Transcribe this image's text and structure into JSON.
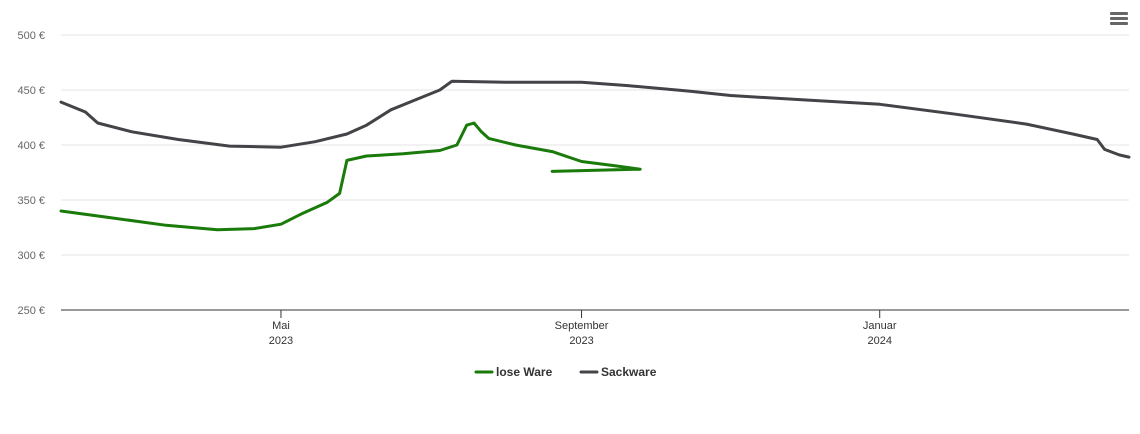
{
  "chart_data": {
    "type": "line",
    "title": "",
    "xlabel": "",
    "ylabel": "",
    "ylim": [
      250,
      500
    ],
    "yticks": [
      250,
      300,
      350,
      400,
      450,
      500
    ],
    "ytick_labels": [
      "250 €",
      "300 €",
      "350 €",
      "400 €",
      "450 €",
      "500 €"
    ],
    "xlim": [
      "2023-01-31",
      "2024-04-12"
    ],
    "xticks": [
      {
        "date": "2023-05-01",
        "label1": "Mai",
        "label2": "2023"
      },
      {
        "date": "2023-09-01",
        "label1": "September",
        "label2": "2023"
      },
      {
        "date": "2024-01-01",
        "label1": "Januar",
        "label2": "2024"
      }
    ],
    "grid": true,
    "legend": "bottom-center",
    "series": [
      {
        "name": "lose Ware",
        "color": "#1a7a0a",
        "points": [
          [
            "2023-01-31",
            340
          ],
          [
            "2023-02-20",
            334
          ],
          [
            "2023-03-15",
            327
          ],
          [
            "2023-04-05",
            323
          ],
          [
            "2023-04-20",
            324
          ],
          [
            "2023-05-01",
            328
          ],
          [
            "2023-05-10",
            338
          ],
          [
            "2023-05-20",
            348
          ],
          [
            "2023-05-25",
            356
          ],
          [
            "2023-05-28",
            386
          ],
          [
            "2023-06-05",
            390
          ],
          [
            "2023-06-20",
            392
          ],
          [
            "2023-07-05",
            395
          ],
          [
            "2023-07-12",
            400
          ],
          [
            "2023-07-16",
            418
          ],
          [
            "2023-07-19",
            420
          ],
          [
            "2023-07-22",
            412
          ],
          [
            "2023-07-25",
            406
          ],
          [
            "2023-08-05",
            400
          ],
          [
            "2023-08-20",
            394
          ],
          [
            "2023-09-01",
            385
          ],
          [
            "2023-09-15",
            381
          ],
          [
            "2023-09-25",
            378
          ],
          [
            "2023-08-20",
            376
          ]
        ]
      },
      {
        "name": "Sackware",
        "color": "#434348",
        "points": [
          [
            "2023-01-31",
            439
          ],
          [
            "2023-02-10",
            430
          ],
          [
            "2023-02-15",
            420
          ],
          [
            "2023-03-01",
            412
          ],
          [
            "2023-03-20",
            405
          ],
          [
            "2023-04-10",
            399
          ],
          [
            "2023-05-01",
            398
          ],
          [
            "2023-05-15",
            403
          ],
          [
            "2023-05-28",
            410
          ],
          [
            "2023-06-05",
            418
          ],
          [
            "2023-06-15",
            432
          ],
          [
            "2023-06-25",
            441
          ],
          [
            "2023-07-05",
            450
          ],
          [
            "2023-07-10",
            458
          ],
          [
            "2023-08-01",
            457
          ],
          [
            "2023-09-01",
            457
          ],
          [
            "2023-09-20",
            454
          ],
          [
            "2023-10-15",
            449
          ],
          [
            "2023-11-01",
            445
          ],
          [
            "2023-12-01",
            441
          ],
          [
            "2024-01-01",
            437
          ],
          [
            "2024-02-01",
            428
          ],
          [
            "2024-03-01",
            419
          ],
          [
            "2024-03-20",
            410
          ],
          [
            "2024-03-30",
            405
          ],
          [
            "2024-04-02",
            396
          ],
          [
            "2024-04-08",
            391
          ],
          [
            "2024-04-12",
            389
          ]
        ]
      }
    ]
  }
}
